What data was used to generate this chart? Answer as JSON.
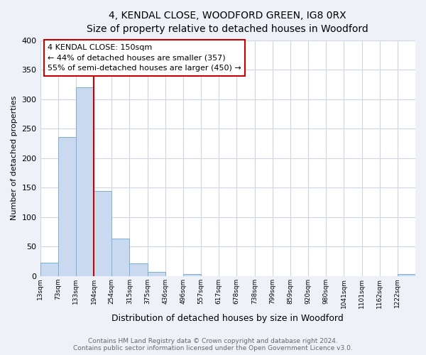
{
  "title": "4, KENDAL CLOSE, WOODFORD GREEN, IG8 0RX",
  "subtitle": "Size of property relative to detached houses in Woodford",
  "xlabel": "Distribution of detached houses by size in Woodford",
  "ylabel": "Number of detached properties",
  "bin_labels": [
    "13sqm",
    "73sqm",
    "133sqm",
    "194sqm",
    "254sqm",
    "315sqm",
    "375sqm",
    "436sqm",
    "496sqm",
    "557sqm",
    "617sqm",
    "678sqm",
    "738sqm",
    "799sqm",
    "859sqm",
    "920sqm",
    "980sqm",
    "1041sqm",
    "1101sqm",
    "1162sqm",
    "1222sqm"
  ],
  "bar_heights": [
    22,
    236,
    320,
    144,
    64,
    21,
    7,
    0,
    3,
    0,
    0,
    0,
    0,
    0,
    0,
    0,
    0,
    0,
    0,
    0,
    3
  ],
  "bar_color": "#c8d9f0",
  "bar_edge_color": "#7bafd4",
  "ylim": [
    0,
    400
  ],
  "yticks": [
    0,
    50,
    100,
    150,
    200,
    250,
    300,
    350,
    400
  ],
  "annotation_title": "4 KENDAL CLOSE: 150sqm",
  "annotation_line1": "← 44% of detached houses are smaller (357)",
  "annotation_line2": "55% of semi-detached houses are larger (450) →",
  "red_line_color": "#cc0000",
  "annotation_box_edge": "#cc0000",
  "footer_line1": "Contains HM Land Registry data © Crown copyright and database right 2024.",
  "footer_line2": "Contains public sector information licensed under the Open Government Licence v3.0.",
  "bg_color": "#eef2f8",
  "plot_bg_color": "#ffffff",
  "grid_color": "#cdd5e3"
}
